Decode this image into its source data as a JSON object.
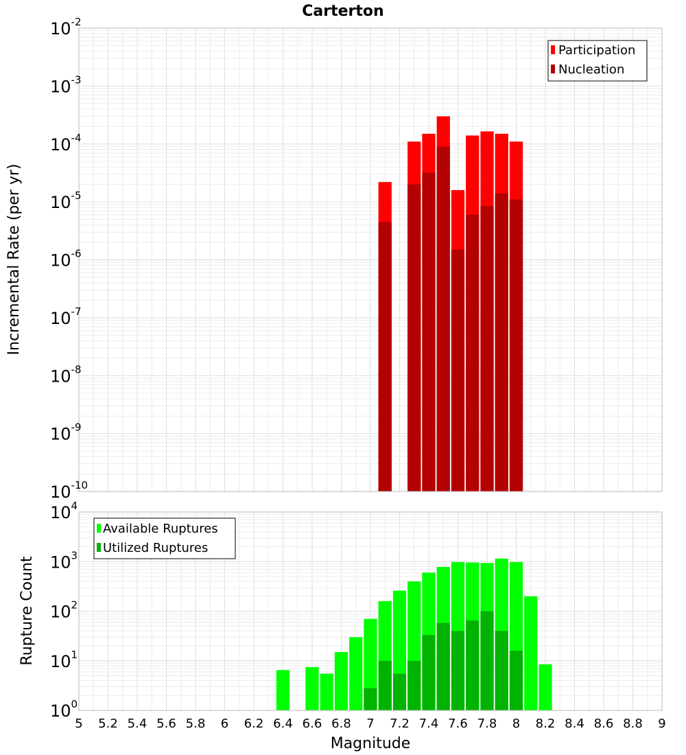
{
  "chart_data": [
    {
      "type": "bar",
      "title": "Carterton",
      "ylabel": "Incremental Rate (per yr)",
      "xlabel": "",
      "xlim": [
        5,
        9
      ],
      "ylim": [
        1e-10,
        0.01
      ],
      "yscale": "log",
      "bin_width": 0.1,
      "grid": true,
      "legend_position": "top-right",
      "x": [
        7.1,
        7.3,
        7.4,
        7.5,
        7.6,
        7.7,
        7.8,
        7.9,
        8.0
      ],
      "series": [
        {
          "name": "Participation",
          "color": "#ff0000",
          "values": [
            2.2e-05,
            0.00011,
            0.00015,
            0.0003,
            1.6e-05,
            0.00014,
            0.000165,
            0.00015,
            0.00011
          ]
        },
        {
          "name": "Nucleation",
          "color": "#b30000",
          "values": [
            4.5e-06,
            2e-05,
            3.2e-05,
            9e-05,
            1.5e-06,
            6e-06,
            8.5e-06,
            1.4e-05,
            1.1e-05
          ]
        }
      ]
    },
    {
      "type": "bar",
      "title": "",
      "ylabel": "Rupture Count",
      "xlabel": "Magnitude",
      "xlim": [
        5,
        9
      ],
      "ylim": [
        1,
        10000
      ],
      "yscale": "log",
      "bin_width": 0.1,
      "grid": true,
      "legend_position": "top-left",
      "x": [
        6.4,
        6.6,
        6.7,
        6.8,
        6.9,
        7.0,
        7.1,
        7.2,
        7.3,
        7.4,
        7.5,
        7.6,
        7.7,
        7.8,
        7.9,
        8.0,
        8.1,
        8.2
      ],
      "series": [
        {
          "name": "Available Ruptures",
          "color": "#00ff00",
          "values": [
            6.5,
            7.5,
            5.5,
            15,
            30,
            70,
            160,
            260,
            400,
            600,
            780,
            980,
            960,
            940,
            1150,
            980,
            200,
            8.5
          ]
        },
        {
          "name": "Utilized Ruptures",
          "color": "#00b300",
          "x": [
            7.0,
            7.1,
            7.2,
            7.3,
            7.4,
            7.5,
            7.6,
            7.7,
            7.8,
            7.9,
            8.0
          ],
          "values": [
            2.8,
            10,
            5.5,
            10,
            33,
            58,
            40,
            65,
            100,
            40,
            16
          ]
        }
      ]
    }
  ],
  "x_ticks": [
    "5",
    "5.2",
    "5.4",
    "5.6",
    "5.8",
    "6",
    "6.2",
    "6.4",
    "6.6",
    "6.8",
    "7",
    "7.2",
    "7.4",
    "7.6",
    "7.8",
    "8",
    "8.2",
    "8.4",
    "8.6",
    "8.8",
    "9"
  ],
  "top_y_ticks": [
    {
      "base": "10",
      "exp": "-2"
    },
    {
      "base": "10",
      "exp": "-3"
    },
    {
      "base": "10",
      "exp": "-4"
    },
    {
      "base": "10",
      "exp": "-5"
    },
    {
      "base": "10",
      "exp": "-6"
    },
    {
      "base": "10",
      "exp": "-7"
    },
    {
      "base": "10",
      "exp": "-8"
    },
    {
      "base": "10",
      "exp": "-9"
    },
    {
      "base": "10",
      "exp": "-10"
    }
  ],
  "bottom_y_ticks": [
    {
      "base": "10",
      "exp": "4"
    },
    {
      "base": "10",
      "exp": "3"
    },
    {
      "base": "10",
      "exp": "2"
    },
    {
      "base": "10",
      "exp": "1"
    },
    {
      "base": "10",
      "exp": "0"
    }
  ]
}
